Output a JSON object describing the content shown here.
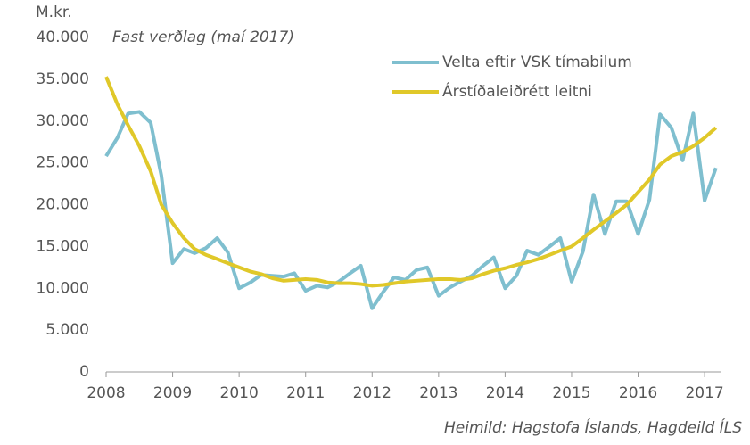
{
  "chart_data": {
    "type": "line",
    "y_unit": "M.kr.",
    "subtitle": "Fast verðlag (maí 2017)",
    "source": "Heimild: Hagstofa Íslands, Hagdeild ÍLS",
    "x": [
      2008.0,
      2008.17,
      2008.33,
      2008.5,
      2008.67,
      2008.83,
      2009.0,
      2009.17,
      2009.33,
      2009.5,
      2009.67,
      2009.83,
      2010.0,
      2010.17,
      2010.33,
      2010.5,
      2010.67,
      2010.83,
      2011.0,
      2011.17,
      2011.33,
      2011.5,
      2011.67,
      2011.83,
      2012.0,
      2012.17,
      2012.33,
      2012.5,
      2012.67,
      2012.83,
      2013.0,
      2013.17,
      2013.33,
      2013.5,
      2013.67,
      2013.83,
      2014.0,
      2014.17,
      2014.33,
      2014.5,
      2014.67,
      2014.83,
      2015.0,
      2015.17,
      2015.33,
      2015.5,
      2015.67,
      2015.83,
      2016.0,
      2016.17,
      2016.33,
      2016.5,
      2016.67,
      2016.83,
      2017.0,
      2017.17
    ],
    "series": [
      {
        "name": "Velta eftir VSK tímabilum",
        "color": "#7fbfcf",
        "values": [
          25800,
          28000,
          30900,
          31100,
          29800,
          23500,
          13000,
          14700,
          14200,
          14800,
          16000,
          14300,
          10000,
          10700,
          11600,
          11500,
          11400,
          11800,
          9700,
          10300,
          10100,
          10800,
          11800,
          12700,
          7600,
          9600,
          11300,
          11000,
          12200,
          12500,
          9100,
          10100,
          10800,
          11500,
          12700,
          13700,
          10000,
          11500,
          14500,
          14000,
          15000,
          16000,
          10800,
          14400,
          21200,
          16500,
          20400,
          20400,
          16500,
          20600,
          30800,
          29200,
          25300,
          30900,
          20500,
          24400
        ]
      },
      {
        "name": "Árstíðaleiðrétt leitni",
        "color": "#e0c829",
        "values": [
          35300,
          32000,
          29500,
          27000,
          24000,
          20000,
          17800,
          16000,
          14700,
          14000,
          13500,
          13000,
          12500,
          12000,
          11700,
          11200,
          10900,
          11000,
          11100,
          11000,
          10700,
          10600,
          10600,
          10500,
          10300,
          10400,
          10600,
          10800,
          10900,
          11000,
          11100,
          11100,
          11000,
          11200,
          11700,
          12100,
          12400,
          12800,
          13100,
          13500,
          14000,
          14500,
          15000,
          16000,
          17000,
          18000,
          19000,
          20000,
          21500,
          23000,
          24800,
          25800,
          26300,
          27000,
          28000,
          29200
        ]
      }
    ],
    "xlim": [
      2008,
      2017.24
    ],
    "xticks": [
      2008,
      2009,
      2010,
      2011,
      2012,
      2013,
      2014,
      2015,
      2016,
      2017
    ],
    "ylim": [
      0,
      40000
    ],
    "yticks": [
      0,
      {
        "value": 5000,
        "label": "5.000"
      },
      {
        "value": 10000,
        "label": "10.000"
      },
      {
        "value": 15000,
        "label": "15.000"
      },
      {
        "value": 20000,
        "label": "20.000"
      },
      {
        "value": 25000,
        "label": "25.000"
      },
      {
        "value": 30000,
        "label": "30.000"
      },
      {
        "value": 35000,
        "label": "35.000"
      },
      {
        "value": 40000,
        "label": "40.000"
      }
    ],
    "grid": false
  }
}
